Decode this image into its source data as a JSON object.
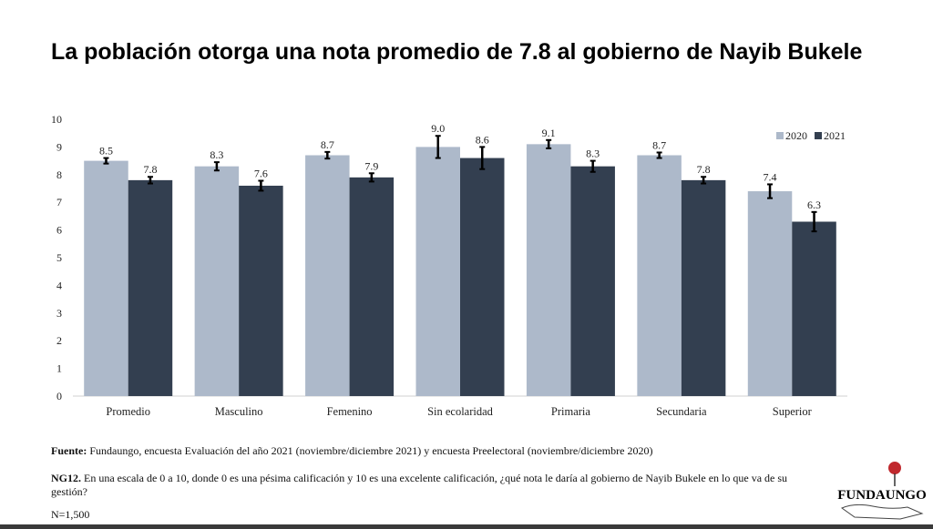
{
  "title": "La población otorga una nota promedio de 7.8 al gobierno de Nayib Bukele",
  "chart_data": {
    "type": "bar",
    "title": "La población otorga una nota promedio de 7.8 al gobierno de Nayib Bukele",
    "xlabel": "",
    "ylabel": "",
    "ylim": [
      0,
      10
    ],
    "yticks": [
      "0",
      "1",
      "2",
      "3",
      "4",
      "5",
      "6",
      "7",
      "8",
      "9",
      "10"
    ],
    "grid": false,
    "legend_position": "top-right",
    "categories": [
      "Promedio",
      "Masculino",
      "Femenino",
      "Sin ecolaridad",
      "Primaria",
      "Secundaria",
      "Superior"
    ],
    "series": [
      {
        "name": "2020",
        "color": "#adb9ca",
        "values": [
          8.5,
          8.3,
          8.7,
          9.0,
          9.1,
          8.7,
          7.4
        ],
        "labels": [
          "8.5",
          "8.3",
          "8.7",
          "9.0",
          "9.1",
          "8.7",
          "7.4"
        ],
        "error": [
          0.1,
          0.15,
          0.12,
          0.4,
          0.15,
          0.1,
          0.25
        ]
      },
      {
        "name": "2021",
        "color": "#333f50",
        "values": [
          7.8,
          7.6,
          7.9,
          8.6,
          8.3,
          7.8,
          6.3
        ],
        "labels": [
          "7.8",
          "7.6",
          "7.9",
          "8.6",
          "8.3",
          "7.8",
          "6.3"
        ],
        "error": [
          0.12,
          0.18,
          0.15,
          0.4,
          0.2,
          0.12,
          0.35
        ]
      }
    ]
  },
  "footer": {
    "source_label": "Fuente:",
    "source_text": " Fundaungo, encuesta Evaluación del año 2021 (noviembre/diciembre 2021)  y encuesta Preelectoral (noviembre/diciembre 2020)",
    "question_label": "NG12.",
    "question_text": " En una escala de 0 a 10, donde 0 es una pésima calificación y 10 es una excelente calificación, ¿qué nota le daría al gobierno de Nayib Bukele en lo que va de su gestión?",
    "sample": "N=1,500"
  },
  "logo": {
    "text": "FUNDAUNGO"
  }
}
